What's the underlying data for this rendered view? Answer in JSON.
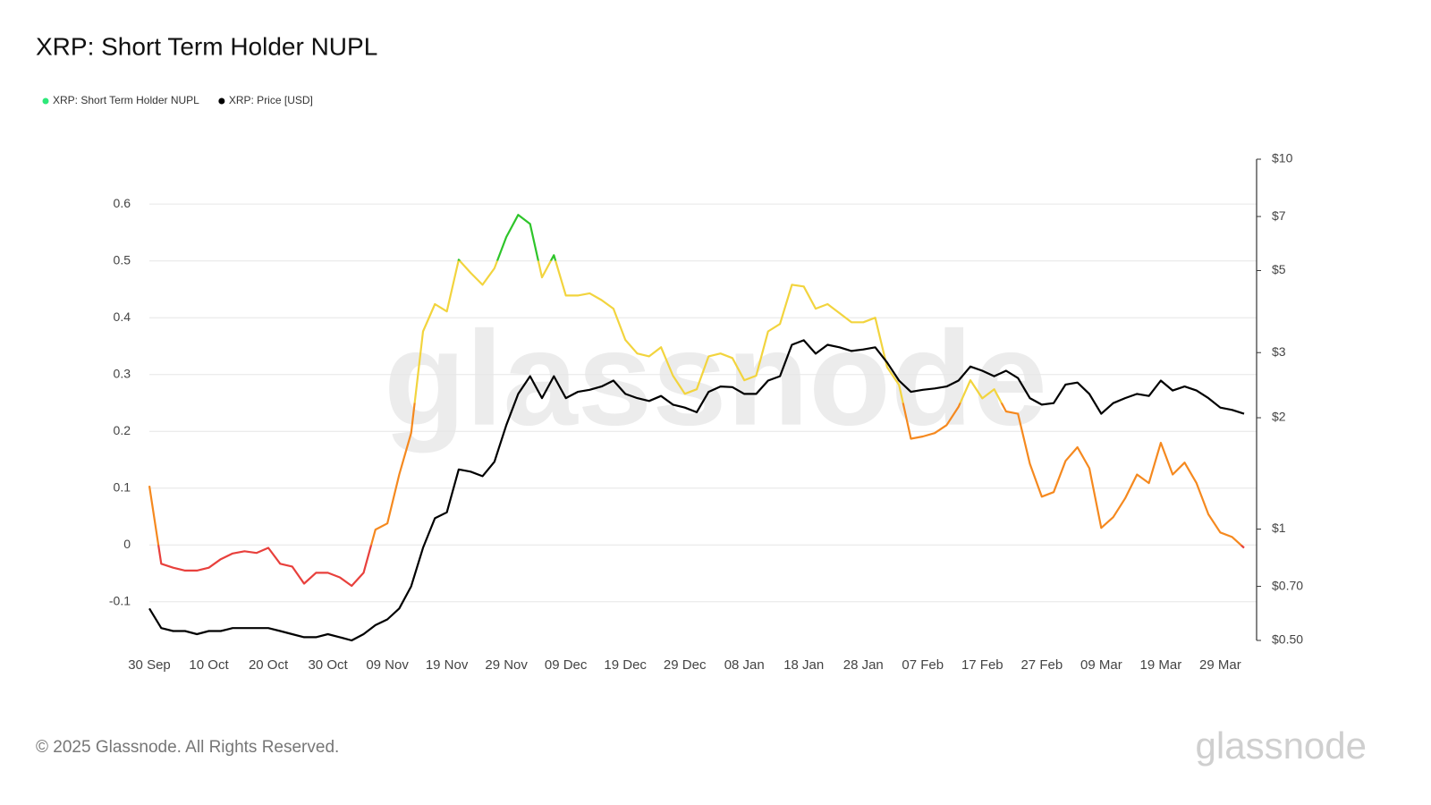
{
  "chart_data": {
    "type": "line",
    "title": "XRP: Short Term Holder NUPL",
    "watermark": "glassnode",
    "footer": "© 2025 Glassnode. All Rights Reserved.",
    "logo": "glassnode",
    "legend": "top-left",
    "grid": true,
    "x": [
      "30 Sep",
      "02 Oct",
      "04 Oct",
      "06 Oct",
      "08 Oct",
      "10 Oct",
      "12 Oct",
      "14 Oct",
      "16 Oct",
      "18 Oct",
      "20 Oct",
      "22 Oct",
      "24 Oct",
      "26 Oct",
      "28 Oct",
      "30 Oct",
      "01 Nov",
      "03 Nov",
      "05 Nov",
      "07 Nov",
      "09 Nov",
      "11 Nov",
      "13 Nov",
      "15 Nov",
      "17 Nov",
      "19 Nov",
      "21 Nov",
      "23 Nov",
      "25 Nov",
      "27 Nov",
      "29 Nov",
      "01 Dec",
      "03 Dec",
      "05 Dec",
      "07 Dec",
      "09 Dec",
      "11 Dec",
      "13 Dec",
      "15 Dec",
      "17 Dec",
      "19 Dec",
      "21 Dec",
      "23 Dec",
      "25 Dec",
      "27 Dec",
      "29 Dec",
      "31 Dec",
      "02 Jan",
      "04 Jan",
      "06 Jan",
      "08 Jan",
      "10 Jan",
      "12 Jan",
      "14 Jan",
      "16 Jan",
      "18 Jan",
      "20 Jan",
      "22 Jan",
      "24 Jan",
      "26 Jan",
      "28 Jan",
      "30 Jan",
      "01 Feb",
      "03 Feb",
      "05 Feb",
      "07 Feb",
      "09 Feb",
      "11 Feb",
      "13 Feb",
      "15 Feb",
      "17 Feb",
      "19 Feb",
      "21 Feb",
      "23 Feb",
      "25 Feb",
      "27 Feb",
      "01 Mar",
      "03 Mar",
      "05 Mar",
      "07 Mar",
      "09 Mar",
      "11 Mar",
      "13 Mar",
      "15 Mar",
      "17 Mar",
      "19 Mar",
      "21 Mar",
      "23 Mar",
      "25 Mar",
      "27 Mar",
      "29 Mar",
      "31 Mar",
      "02 Apr"
    ],
    "xticks": [
      "30 Sep",
      "10 Oct",
      "20 Oct",
      "30 Oct",
      "09 Nov",
      "19 Nov",
      "29 Nov",
      "09 Dec",
      "19 Dec",
      "29 Dec",
      "08 Jan",
      "18 Jan",
      "28 Jan",
      "07 Feb",
      "17 Feb",
      "27 Feb",
      "09 Mar",
      "19 Mar",
      "29 Mar"
    ],
    "ylim": [
      -0.168,
      0.679
    ],
    "yticks": [
      -0.1,
      0,
      0.1,
      0.2,
      0.3,
      0.4,
      0.5,
      0.6
    ],
    "y2lim": [
      0.5,
      10
    ],
    "y2scale": "log",
    "y2ticks": [
      {
        "value": 10,
        "label": "$10"
      },
      {
        "value": 7,
        "label": "$7"
      },
      {
        "value": 5,
        "label": "$5"
      },
      {
        "value": 3,
        "label": "$3"
      },
      {
        "value": 2,
        "label": "$2"
      },
      {
        "value": 1,
        "label": "$1"
      },
      {
        "value": 0.7,
        "label": "$0.70"
      },
      {
        "value": 0.5,
        "label": "$0.50"
      }
    ],
    "series": [
      {
        "name": "XRP: Short Term Holder NUPL",
        "color": "#2ee87a",
        "zone_thresholds": [
          0,
          0.25,
          0.5
        ],
        "zone_colors": [
          "#e8403c",
          "#f5891f",
          "#f2d43e",
          "#2ec52a"
        ],
        "values": [
          0.104,
          -0.033,
          -0.04,
          -0.045,
          -0.045,
          -0.04,
          -0.025,
          -0.015,
          -0.011,
          -0.014,
          -0.005,
          -0.033,
          -0.038,
          -0.068,
          -0.049,
          -0.049,
          -0.057,
          -0.072,
          -0.049,
          0.027,
          0.038,
          0.124,
          0.197,
          0.376,
          0.424,
          0.411,
          0.502,
          0.479,
          0.458,
          0.487,
          0.542,
          0.581,
          0.565,
          0.471,
          0.51,
          0.439,
          0.439,
          0.443,
          0.431,
          0.416,
          0.361,
          0.337,
          0.332,
          0.348,
          0.298,
          0.266,
          0.274,
          0.332,
          0.337,
          0.329,
          0.29,
          0.298,
          0.376,
          0.389,
          0.458,
          0.455,
          0.416,
          0.424,
          0.408,
          0.392,
          0.392,
          0.4,
          0.313,
          0.282,
          0.187,
          0.191,
          0.197,
          0.211,
          0.243,
          0.29,
          0.258,
          0.274,
          0.235,
          0.231,
          0.143,
          0.085,
          0.093,
          0.148,
          0.172,
          0.135,
          0.03,
          0.049,
          0.082,
          0.124,
          0.109,
          0.18,
          0.124,
          0.145,
          0.109,
          0.054,
          0.022,
          0.014,
          -0.005
        ]
      },
      {
        "name": "XRP: Price [USD]",
        "color": "#000000",
        "axis": "y2",
        "values": [
          0.61,
          0.54,
          0.53,
          0.53,
          0.52,
          0.53,
          0.53,
          0.54,
          0.54,
          0.54,
          0.54,
          0.53,
          0.52,
          0.51,
          0.51,
          0.52,
          0.51,
          0.5,
          0.52,
          0.55,
          0.57,
          0.61,
          0.7,
          0.89,
          1.07,
          1.11,
          1.45,
          1.43,
          1.39,
          1.52,
          1.91,
          2.32,
          2.59,
          2.26,
          2.59,
          2.26,
          2.35,
          2.38,
          2.43,
          2.52,
          2.32,
          2.26,
          2.22,
          2.29,
          2.17,
          2.13,
          2.07,
          2.35,
          2.43,
          2.42,
          2.32,
          2.32,
          2.52,
          2.59,
          3.15,
          3.24,
          2.98,
          3.15,
          3.1,
          3.03,
          3.06,
          3.1,
          2.82,
          2.52,
          2.35,
          2.38,
          2.4,
          2.43,
          2.52,
          2.75,
          2.68,
          2.59,
          2.68,
          2.56,
          2.26,
          2.17,
          2.19,
          2.46,
          2.49,
          2.32,
          2.05,
          2.19,
          2.26,
          2.32,
          2.29,
          2.52,
          2.37,
          2.43,
          2.37,
          2.26,
          2.13,
          2.1,
          2.05
        ]
      }
    ]
  }
}
